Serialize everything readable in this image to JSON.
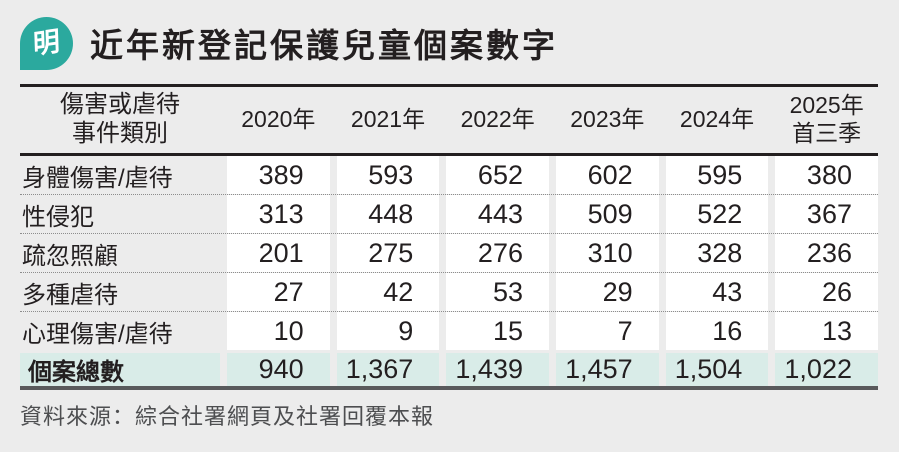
{
  "brand": {
    "logo_text": "明"
  },
  "title": "近年新登記保護兒童個案數字",
  "table": {
    "category_header": "傷害或虐待\n事件類別",
    "year_headers": [
      "2020年",
      "2021年",
      "2022年",
      "2023年",
      "2024年",
      "2025年\n首三季"
    ],
    "rows": [
      {
        "label": "身體傷害/虐待",
        "values": [
          "389",
          "593",
          "652",
          "602",
          "595",
          "380"
        ]
      },
      {
        "label": "性侵犯",
        "values": [
          "313",
          "448",
          "443",
          "509",
          "522",
          "367"
        ]
      },
      {
        "label": "疏忽照顧",
        "values": [
          "201",
          "275",
          "276",
          "310",
          "328",
          "236"
        ]
      },
      {
        "label": "多種虐待",
        "values": [
          "27",
          "42",
          "53",
          "29",
          "43",
          "26"
        ]
      },
      {
        "label": "心理傷害/虐待",
        "values": [
          "10",
          "9",
          "15",
          "7",
          "16",
          "13"
        ]
      }
    ],
    "total": {
      "label": "個案總數",
      "values": [
        "940",
        "1,367",
        "1,439",
        "1,457",
        "1,504",
        "1,022"
      ]
    }
  },
  "source": "資料來源：綜合社署網頁及社署回覆本報",
  "colors": {
    "background": "#ECECEC",
    "brand_teal": "#2BA99E",
    "total_row_bg": "#D9ECE8",
    "text_black": "#231F20",
    "source_gray": "#4D4E50",
    "bottom_rule": "#595A5C"
  },
  "chart_data": {
    "type": "table",
    "title": "近年新登記保護兒童個案數字",
    "categories": [
      "2020年",
      "2021年",
      "2022年",
      "2023年",
      "2024年",
      "2025年首三季"
    ],
    "row_header_label": "傷害或虐待事件類別",
    "series": [
      {
        "name": "身體傷害/虐待",
        "values": [
          389,
          593,
          652,
          602,
          595,
          380
        ]
      },
      {
        "name": "性侵犯",
        "values": [
          313,
          448,
          443,
          509,
          522,
          367
        ]
      },
      {
        "name": "疏忽照顧",
        "values": [
          201,
          275,
          276,
          310,
          328,
          236
        ]
      },
      {
        "name": "多種虐待",
        "values": [
          27,
          42,
          53,
          29,
          43,
          26
        ]
      },
      {
        "name": "心理傷害/虐待",
        "values": [
          10,
          9,
          15,
          7,
          16,
          13
        ]
      },
      {
        "name": "個案總數",
        "values": [
          940,
          1367,
          1439,
          1457,
          1504,
          1022
        ]
      }
    ],
    "source": "資料來源：綜合社署網頁及社署回覆本報"
  }
}
